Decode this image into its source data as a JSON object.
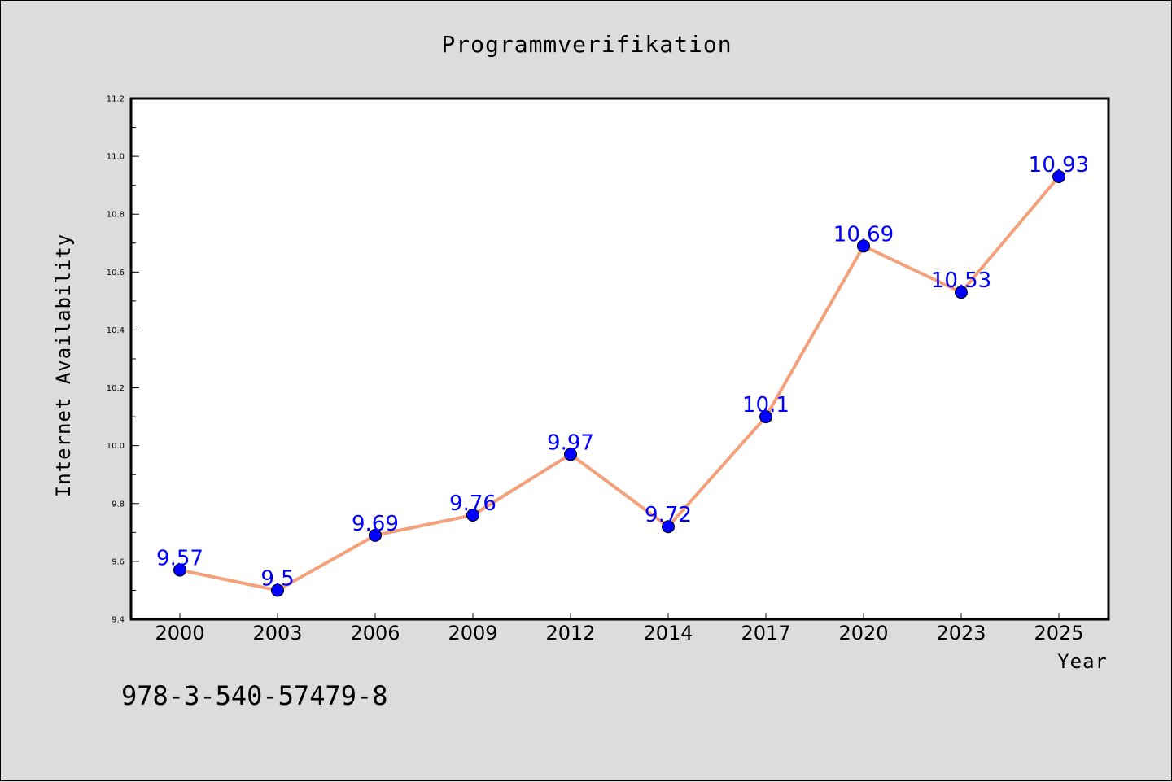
{
  "chart_data": {
    "type": "line",
    "title": "Programmverifikation",
    "xlabel": "Year",
    "ylabel": "Internet Availability",
    "categories": [
      "2000",
      "2003",
      "2006",
      "2009",
      "2012",
      "2014",
      "2017",
      "2020",
      "2023",
      "2025"
    ],
    "series": [
      {
        "values": [
          9.57,
          9.5,
          9.69,
          9.76,
          9.97,
          9.72,
          10.1,
          10.69,
          10.53,
          10.93
        ],
        "labels": [
          "9.57",
          "9.5",
          "9.69",
          "9.76",
          "9.97",
          "9.72",
          "10.1",
          "10.69",
          "10.53",
          "10.93"
        ],
        "line_color": "#f4a07a",
        "marker_color": "#0000ff"
      }
    ],
    "ylim": [
      9.4,
      11.2
    ],
    "yticks": [
      "9.4",
      "9.6",
      "9.8",
      "10.0",
      "10.2",
      "10.4",
      "10.6",
      "10.8",
      "11.0",
      "11.2"
    ],
    "grid": false,
    "legend": "none"
  },
  "footnote": "978-3-540-57479-8",
  "colors": {
    "background": "#dcdcdc",
    "plot_background": "#ffffff",
    "line": "#f4a07a",
    "marker": "#0000ff",
    "data_label": "#0000ff"
  }
}
